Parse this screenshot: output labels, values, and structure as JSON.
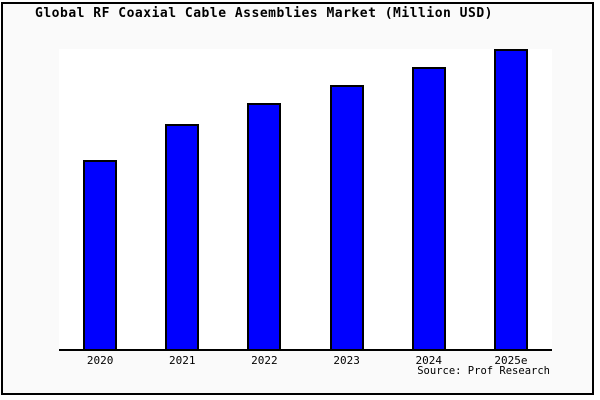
{
  "figure": {
    "background": "#fafafa",
    "frame_border_color": "#000000",
    "plot_background": "#ffffff"
  },
  "chart_data": {
    "type": "bar",
    "title": "Global RF Coaxial Cable Assemblies Market (Million USD)",
    "categories": [
      "2020",
      "2021",
      "2022",
      "2023",
      "2024",
      "2025e"
    ],
    "values": [
      63,
      75,
      82,
      88,
      94,
      100
    ],
    "value_note": "y-axis has no tick labels or gridlines; values estimated as relative bar heights indexed to 2025e = 100",
    "ylim": [
      0,
      100
    ],
    "xlabel": "",
    "ylabel": "",
    "grid": false,
    "legend": null,
    "bar_color": "#0000ff",
    "bar_border_color": "#000000",
    "axis_line_color": "#000000",
    "source_note": "Source: Prof Research"
  }
}
